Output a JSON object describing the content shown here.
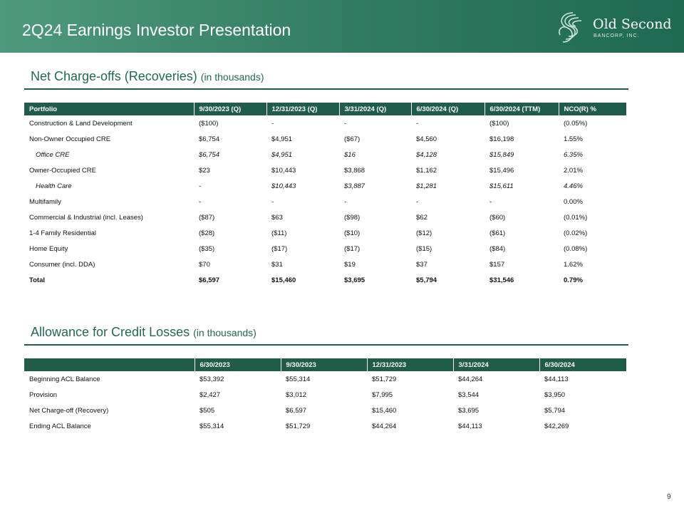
{
  "header": {
    "title": "2Q24 Earnings Investor Presentation",
    "logo_name": "Old Second",
    "logo_sub": "BANCORP, INC."
  },
  "nco_section": {
    "title": "Net Charge-offs (Recoveries)",
    "subtitle": "(in thousands)",
    "columns": [
      "Portfolio",
      "9/30/2023 (Q)",
      "12/31/2023 (Q)",
      "3/31/2024 (Q)",
      "6/30/2024 (Q)",
      "6/30/2024 (TTM)",
      "NCO(R) %"
    ],
    "rows": [
      [
        "Construction & Land Development",
        "($100)",
        "-",
        "-",
        "-",
        "($100)",
        "(0.05%)"
      ],
      [
        "Non-Owner Occupied CRE",
        "$6,754",
        "$4,951",
        "($67)",
        "$4,560",
        "$16,198",
        "1.55%"
      ],
      [
        "Office CRE",
        "$6,754",
        "$4,951",
        "$16",
        "$4,128",
        "$15,849",
        "6.35%"
      ],
      [
        "Owner-Occupied CRE",
        "$23",
        "$10,443",
        "$3,868",
        "$1,162",
        "$15,496",
        "2.01%"
      ],
      [
        "Health Care",
        "-",
        "$10,443",
        "$3,887",
        "$1,281",
        "$15,611",
        "4.46%"
      ],
      [
        "Multifamily",
        "-",
        "-",
        "-",
        "-",
        "-",
        "0.00%"
      ],
      [
        "Commercial & Industrial (incl. Leases)",
        "($87)",
        "$63",
        "($98)",
        "$62",
        "($60)",
        "(0.01%)"
      ],
      [
        "1-4 Family Residential",
        "($28)",
        "($11)",
        "($10)",
        "($12)",
        "($61)",
        "(0.02%)"
      ],
      [
        "Home Equity",
        "($35)",
        "($17)",
        "($17)",
        "($15)",
        "($84)",
        "(0.08%)"
      ],
      [
        "Consumer (incl. DDA)",
        "$70",
        "$31",
        "$19",
        "$37",
        "$157",
        "1.62%"
      ],
      [
        "Total",
        "$6,597",
        "$15,460",
        "$3,695",
        "$5,794",
        "$31,546",
        "0.79%"
      ]
    ]
  },
  "acl_section": {
    "title": "Allowance for Credit Losses",
    "subtitle": "(in thousands)",
    "columns": [
      "",
      "6/30/2023",
      "9/30/2023",
      "12/31/2023",
      "3/31/2024",
      "6/30/2024"
    ],
    "rows": [
      [
        "Beginning ACL Balance",
        "$53,392",
        "$55,314",
        "$51,729",
        "$44,264",
        "$44,113"
      ],
      [
        "Provision",
        "$2,427",
        "$3,012",
        "$7,995",
        "$3,544",
        "$3,950"
      ],
      [
        "Net Charge-off (Recovery)",
        "$505",
        "$6,597",
        "$15,460",
        "$3,695",
        "$5,794"
      ],
      [
        "Ending ACL Balance",
        "$55,314",
        "$51,729",
        "$44,264",
        "$44,113",
        "$42,269"
      ]
    ]
  },
  "footer": {
    "page_number": "9"
  }
}
